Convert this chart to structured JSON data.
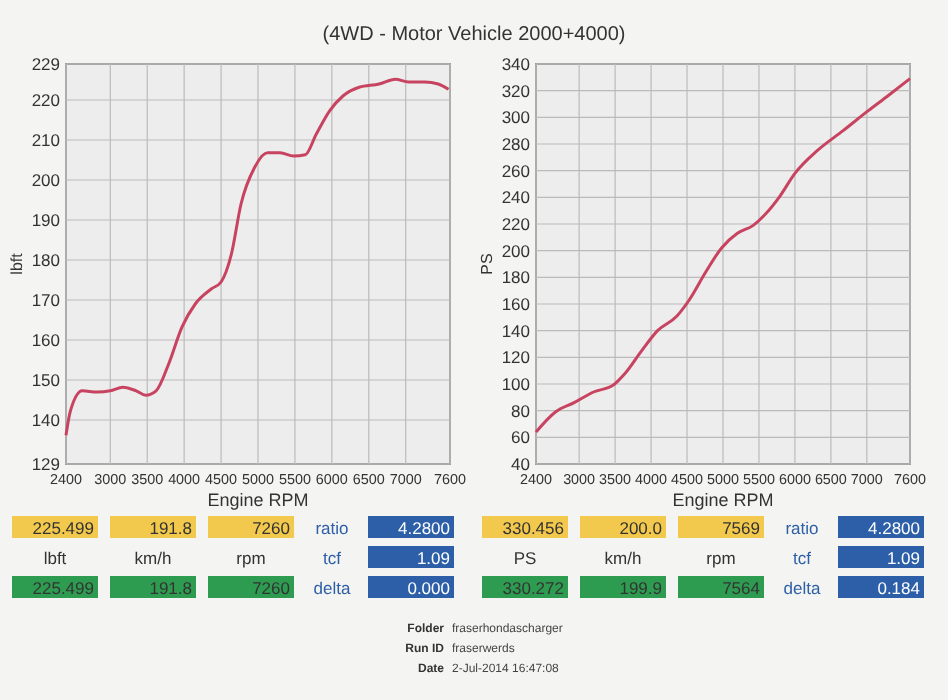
{
  "chart_data": [
    {
      "type": "line",
      "title": "(4WD - Motor Vehicle 2000+4000)",
      "xlabel": "Engine RPM",
      "ylabel": "lbft",
      "xlim": [
        2400,
        7600
      ],
      "xticks": [
        2400,
        3000,
        3500,
        4000,
        4500,
        5000,
        5500,
        6000,
        6500,
        7000,
        7600
      ],
      "ylim": [
        129,
        229
      ],
      "yticks": [
        129,
        140,
        150,
        160,
        170,
        180,
        190,
        200,
        210,
        220,
        229
      ],
      "grid": true,
      "series": [
        {
          "color": "#c8435f",
          "x": [
            2400,
            2460,
            2620,
            2820,
            3000,
            3170,
            3350,
            3480,
            3620,
            3790,
            3970,
            4150,
            4370,
            4500,
            4640,
            4770,
            4950,
            5130,
            5300,
            5480,
            5640,
            5790,
            5970,
            6150,
            6370,
            6640,
            6860,
            7040,
            7260,
            7440,
            7580
          ],
          "values": [
            136.2,
            142.3,
            147.3,
            147,
            147.3,
            148.2,
            147.3,
            146.2,
            147.3,
            154,
            163.2,
            169,
            172.8,
            174.5,
            181.5,
            194,
            203,
            206.8,
            206.8,
            206,
            206.3,
            211.5,
            217.3,
            221,
            223.2,
            224,
            225.2,
            224.5,
            224.5,
            224,
            222.7
          ]
        }
      ]
    },
    {
      "type": "line",
      "xlabel": "Engine RPM",
      "ylabel": "PS",
      "xlim": [
        2400,
        7600
      ],
      "xticks": [
        2400,
        3000,
        3500,
        4000,
        4500,
        5000,
        5500,
        6000,
        6500,
        7000,
        7600
      ],
      "ylim": [
        40,
        340
      ],
      "yticks": [
        40,
        60,
        80,
        100,
        120,
        140,
        160,
        180,
        200,
        220,
        240,
        260,
        280,
        300,
        320,
        340
      ],
      "grid": true,
      "series": [
        {
          "color": "#c8435f",
          "x": [
            2400,
            2670,
            2930,
            3200,
            3470,
            3640,
            3870,
            4090,
            4360,
            4530,
            4760,
            4980,
            5200,
            5420,
            5600,
            5780,
            6000,
            6310,
            6670,
            7020,
            7290,
            7600
          ],
          "values": [
            64,
            79,
            86,
            94,
            99,
            108,
            125,
            140,
            151,
            163,
            184,
            202,
            213,
            219,
            228,
            240,
            258,
            275,
            290,
            305,
            316,
            329
          ]
        }
      ]
    },
    {
      "type": "other",
      "annotations": [
        "225.499",
        "191.8",
        "7260",
        "ratio",
        "4.2800",
        "lbft",
        "km/h",
        "rpm",
        "tcf",
        "1.09",
        "225.499",
        "191.8",
        "7260",
        "delta",
        "0.000",
        "330.456",
        "200.0",
        "7569",
        "ratio",
        "4.2800",
        "PS",
        "km/h",
        "rpm",
        "tcf",
        "1.09",
        "330.272",
        "199.9",
        "7564",
        "delta",
        "0.184",
        "Folder",
        "fraserhondascharger",
        "Run ID",
        "fraserwerds",
        "Date",
        "2-Jul-2014 16:47:08"
      ]
    }
  ]
}
